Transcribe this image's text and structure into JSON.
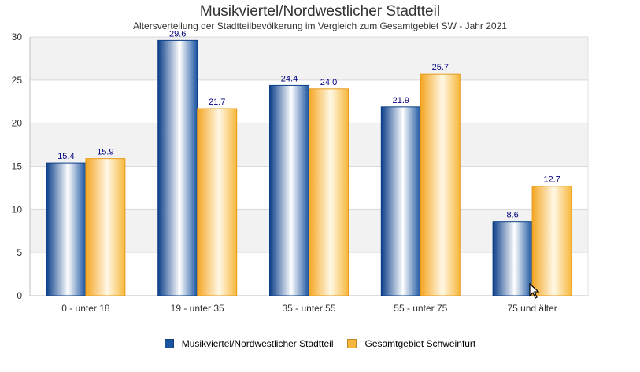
{
  "chart_data": {
    "type": "bar",
    "title": "Musikviertel/Nordwestlicher Stadtteil",
    "subtitle": "Altersverteilung der Stadtteilbevölkerung im Vergleich zum Gesamtgebiet SW - Jahr 2021",
    "categories": [
      "0 - unter 18",
      "19 - unter 35",
      "35 - unter 55",
      "55 - unter 75",
      "75 und älter"
    ],
    "series": [
      {
        "name": "Musikviertel/Nordwestlicher Stadtteil",
        "values": [
          15.4,
          29.6,
          24.4,
          21.9,
          8.6
        ],
        "color": "#1a54a0"
      },
      {
        "name": "Gesamtgebiet Schweinfurt",
        "values": [
          15.9,
          21.7,
          24.0,
          25.7,
          12.7
        ],
        "color": "#f7b73b"
      }
    ],
    "ylim": [
      0,
      30
    ],
    "yticks": [
      0,
      5,
      10,
      15,
      20,
      25,
      30
    ],
    "grid": true,
    "legend_position": "bottom",
    "label_color": "#000080"
  }
}
